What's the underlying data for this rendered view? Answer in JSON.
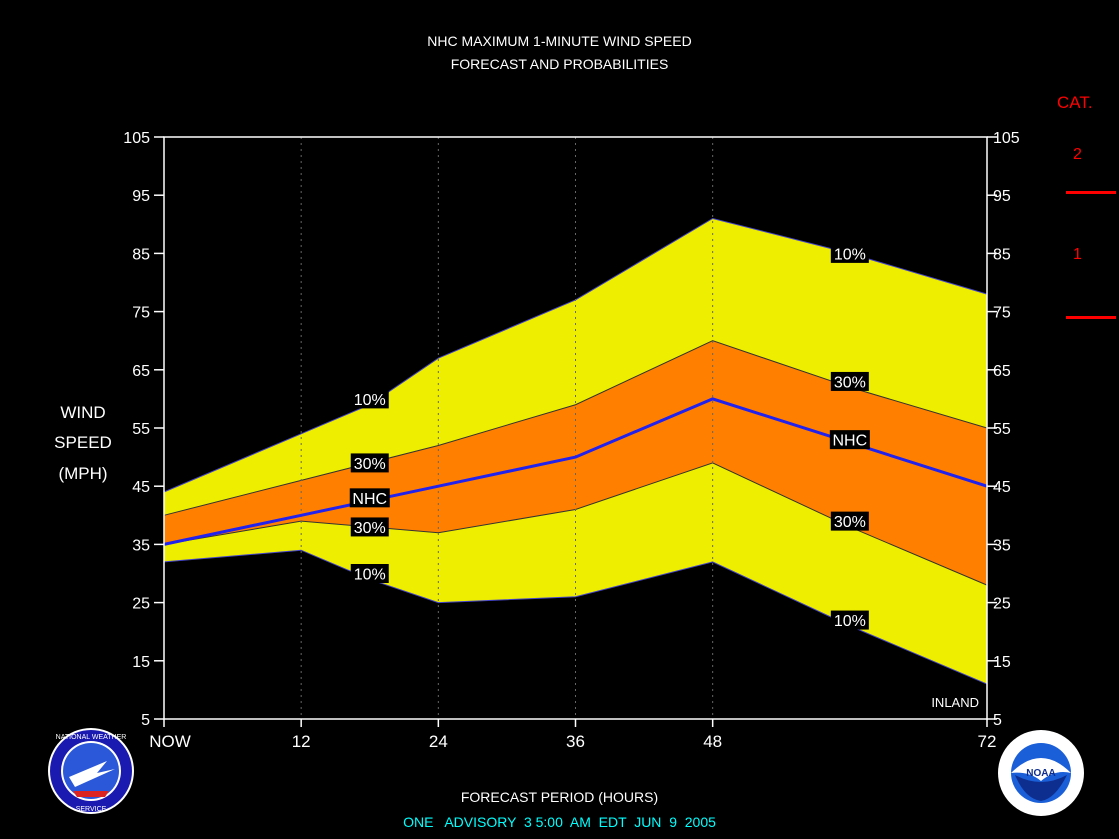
{
  "header": {
    "title_line1": "NHC MAXIMUM 1-MINUTE WIND SPEED",
    "title_line2": "FORECAST AND PROBABILITIES"
  },
  "axes": {
    "ylabel_lines": [
      "WIND",
      "SPEED",
      "(MPH)"
    ],
    "xlabel": "FORECAST PERIOD (HOURS)",
    "x_ticks": [
      "NOW",
      "12",
      "24",
      "36",
      "48",
      "72"
    ],
    "y_ticks": [
      5,
      15,
      25,
      35,
      45,
      55,
      65,
      75,
      85,
      95,
      105
    ]
  },
  "footer": {
    "advisory": "ONE   ADVISORY  3 5:00  AM  EDT  JUN  9  2005"
  },
  "inland_label": "INLAND",
  "category_key": {
    "title": "CAT.",
    "labels": [
      "2",
      "1"
    ]
  },
  "logos": {
    "left": "NATIONAL WEATHER SERVICE",
    "right": "NOAA"
  },
  "colors": {
    "outer_band": "#eeee00",
    "inner_band": "#ff7f00",
    "nhc_line": "#2222ee",
    "category": "#ff0000",
    "footer_text": "#00ffff"
  },
  "chart_data": {
    "type": "area",
    "x": [
      0,
      12,
      24,
      36,
      48,
      72
    ],
    "x_labels": [
      "NOW",
      "12",
      "24",
      "36",
      "48",
      "72"
    ],
    "ylim": [
      5,
      105
    ],
    "xlim": [
      0,
      72
    ],
    "series": [
      {
        "name": "10%",
        "band": "upper",
        "x": [
          0,
          12,
          18,
          24,
          36,
          48,
          60,
          72
        ],
        "values": [
          44,
          54,
          59,
          67,
          77,
          91,
          85,
          78
        ]
      },
      {
        "name": "30%",
        "band": "upper",
        "x": [
          0,
          12,
          24,
          36,
          48,
          60,
          72
        ],
        "values": [
          40,
          46,
          52,
          59,
          70,
          62,
          55
        ]
      },
      {
        "name": "NHC",
        "x": [
          0,
          12,
          24,
          36,
          48,
          72
        ],
        "values": [
          35,
          40,
          45,
          50,
          60,
          45
        ]
      },
      {
        "name": "30%",
        "band": "lower",
        "x": [
          0,
          12,
          24,
          36,
          48,
          60,
          72
        ],
        "values": [
          35,
          39,
          37,
          41,
          49,
          38,
          28
        ]
      },
      {
        "name": "10%",
        "band": "lower",
        "x": [
          0,
          12,
          18,
          24,
          36,
          48,
          60,
          72
        ],
        "values": [
          32,
          34,
          29,
          25,
          26,
          32,
          21,
          11
        ]
      }
    ],
    "labels": [
      {
        "text": "10%",
        "x": 18,
        "y": 60
      },
      {
        "text": "30%",
        "x": 18,
        "y": 49
      },
      {
        "text": "NHC",
        "x": 18,
        "y": 43
      },
      {
        "text": "30%",
        "x": 18,
        "y": 38
      },
      {
        "text": "10%",
        "x": 18,
        "y": 30
      },
      {
        "text": "10%",
        "x": 60,
        "y": 85
      },
      {
        "text": "30%",
        "x": 60,
        "y": 63
      },
      {
        "text": "NHC",
        "x": 60,
        "y": 53
      },
      {
        "text": "30%",
        "x": 60,
        "y": 39
      },
      {
        "text": "10%",
        "x": 60,
        "y": 22
      }
    ],
    "category_thresholds": [
      96,
      74
    ]
  }
}
